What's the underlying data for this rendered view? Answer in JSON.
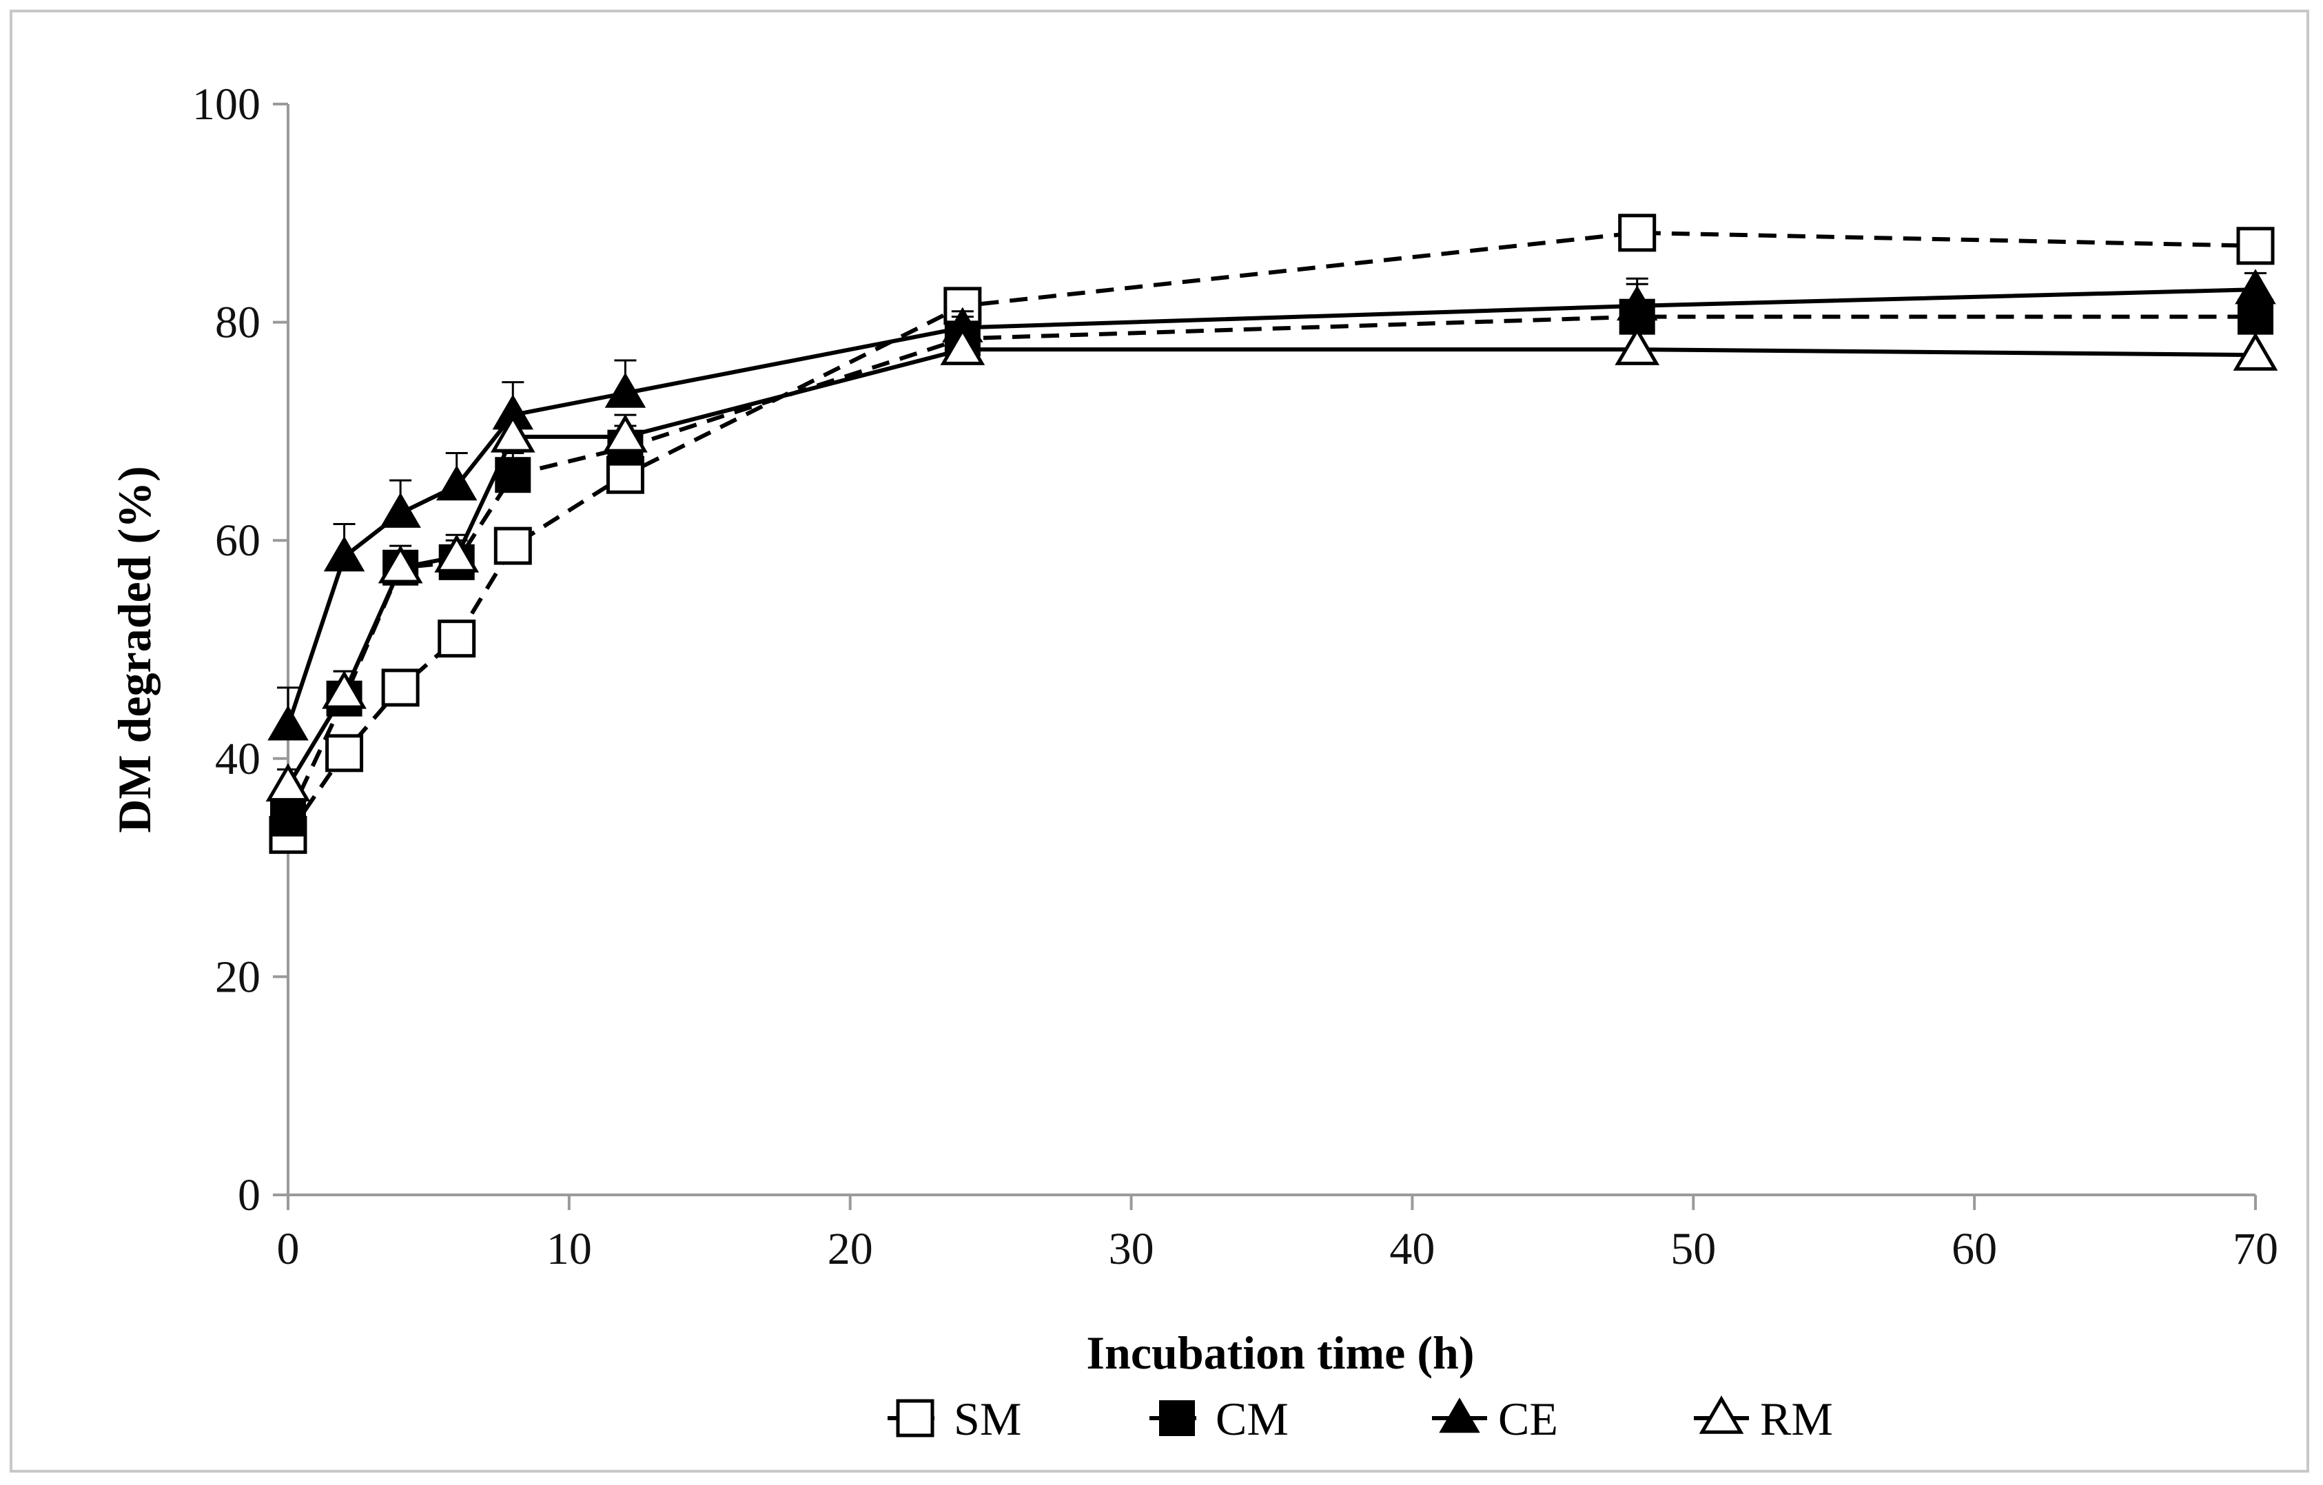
{
  "chart_data": {
    "type": "line",
    "title": "",
    "xlabel": "Incubation time (h)",
    "ylabel": "DM degraded (%)",
    "xlim": [
      0,
      70
    ],
    "ylim": [
      0,
      100
    ],
    "xticks": [
      0,
      10,
      20,
      30,
      40,
      50,
      60,
      70
    ],
    "yticks": [
      0,
      20,
      40,
      60,
      80,
      100
    ],
    "grid": false,
    "legend_position": "bottom-center",
    "series": [
      {
        "name": "SM",
        "marker": "square-open",
        "line": "dashed",
        "x": [
          0,
          2,
          4,
          6,
          8,
          12,
          24,
          48,
          70
        ],
        "y": [
          33,
          40.5,
          46.5,
          51,
          59.5,
          66,
          81.5,
          88.2,
          87
        ],
        "err": [
          1.2,
          1.2,
          1.5,
          1.5,
          1.5,
          1.5,
          1.5,
          1.5,
          1.5
        ]
      },
      {
        "name": "CM",
        "marker": "square-filled",
        "line": "dashed",
        "x": [
          0,
          2,
          4,
          6,
          8,
          12,
          24,
          48,
          70
        ],
        "y": [
          34.5,
          45.5,
          57.5,
          58,
          66,
          68.5,
          78.5,
          80.5,
          80.5
        ],
        "err": [
          1.5,
          2.5,
          2,
          2.5,
          2,
          2,
          2,
          3.5,
          2
        ]
      },
      {
        "name": "CE",
        "marker": "triangle-filled",
        "line": "solid",
        "x": [
          0,
          2,
          4,
          6,
          8,
          12,
          24,
          48,
          70
        ],
        "y": [
          43,
          58.5,
          62.5,
          65,
          71.5,
          73.5,
          79.5,
          81.5,
          83
        ],
        "err": [
          3.5,
          3,
          3,
          3,
          3,
          3,
          1.5,
          2,
          1.5
        ]
      },
      {
        "name": "RM",
        "marker": "triangle-open",
        "line": "solid",
        "x": [
          0,
          2,
          4,
          6,
          8,
          12,
          24,
          48,
          70
        ],
        "y": [
          37.5,
          46,
          57.5,
          58.5,
          69.5,
          69.5,
          77.5,
          77.5,
          77
        ],
        "err": [
          1.5,
          2,
          1.5,
          1.5,
          2,
          2,
          2,
          2,
          2
        ]
      }
    ]
  }
}
